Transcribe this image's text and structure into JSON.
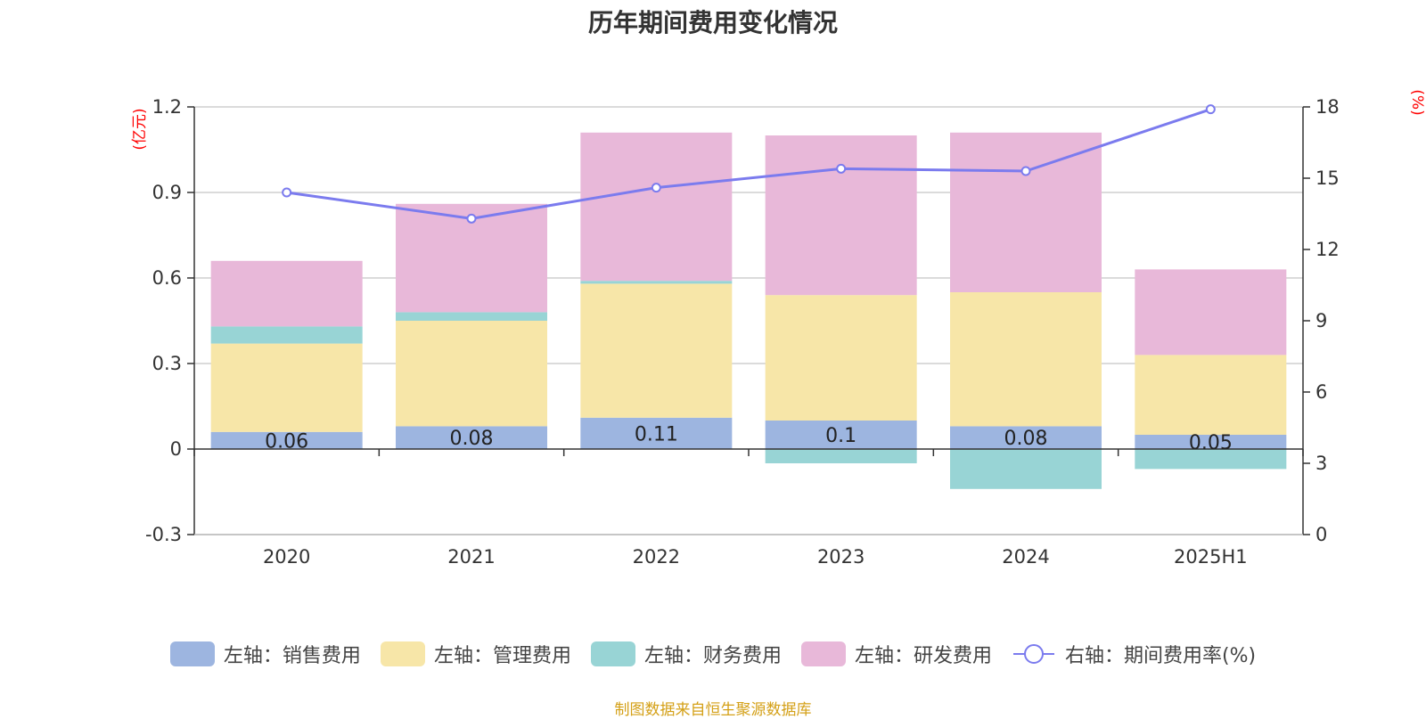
{
  "chart_data": {
    "type": "bar",
    "title": "历年期间费用变化情况",
    "categories": [
      "2020",
      "2021",
      "2022",
      "2023",
      "2024",
      "2025H1"
    ],
    "left_axis": {
      "unit": "(亿元)",
      "ylim": [
        -0.3,
        1.2
      ],
      "ticks": [
        "-0.3",
        "0",
        "0.3",
        "0.6",
        "0.9",
        "1.2"
      ]
    },
    "right_axis": {
      "unit": "(%)",
      "ylim": [
        0,
        18
      ],
      "ticks": [
        "0",
        "3",
        "6",
        "9",
        "12",
        "15",
        "18"
      ]
    },
    "series": [
      {
        "name": "左轴：销售费用",
        "stack": "expenses",
        "color": "#9db5e0",
        "values": [
          0.06,
          0.08,
          0.11,
          0.1,
          0.08,
          0.05
        ],
        "labels": [
          "0.06",
          "0.08",
          "0.11",
          "0.1",
          "0.08",
          "0.05"
        ]
      },
      {
        "name": "左轴：管理费用",
        "stack": "expenses",
        "color": "#f7e6a8",
        "values": [
          0.31,
          0.37,
          0.47,
          0.44,
          0.47,
          0.28
        ]
      },
      {
        "name": "左轴：财务费用",
        "stack": "expenses",
        "color": "#98d4d5",
        "values": [
          0.06,
          0.03,
          0.01,
          -0.05,
          -0.14,
          -0.07
        ]
      },
      {
        "name": "左轴：研发费用",
        "stack": "expenses",
        "color": "#e8b8d9",
        "values": [
          0.23,
          0.38,
          0.52,
          0.56,
          0.56,
          0.3
        ]
      },
      {
        "name": "右轴：期间费用率(%)",
        "type": "line",
        "axis": "right",
        "color": "#7b7bee",
        "values": [
          14.4,
          13.3,
          14.6,
          15.4,
          15.3,
          17.9
        ]
      }
    ],
    "grid": true,
    "legend_position": "bottom"
  },
  "source_note": "制图数据来自恒生聚源数据库"
}
